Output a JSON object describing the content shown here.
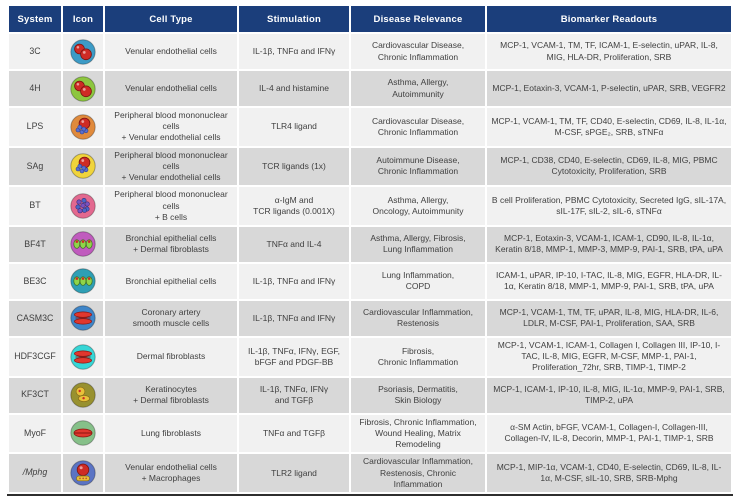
{
  "colors": {
    "header_bg": "#1B3E7B",
    "header_text": "#ffffff",
    "row_light": "#f1f1f1",
    "row_dark": "#d8d8d8",
    "body_text": "#3f3f3f",
    "outer_border": "#2e2e2e"
  },
  "chart_data": {
    "type": "table",
    "columns": [
      "System",
      "Icon",
      "Cell Type",
      "Stimulation",
      "Disease Relevance",
      "Biomarker Readouts"
    ],
    "rows": [
      {
        "system": "3C",
        "icon": {
          "name": "venular-endothelial-cells-icon",
          "pattern": "berries",
          "bg": "#3C9BC6",
          "cell": "#CE2B25"
        },
        "cell_type": "Venular endothelial cells",
        "stimulation": "IL-1β, TNFα and IFNγ",
        "disease_relevance": "Cardiovascular Disease,\nChronic Inflammation",
        "biomarker_readouts": "MCP-1, VCAM-1, TM, TF, ICAM-1, E-selectin, uPAR, IL-8, MIG, HLA-DR, Proliferation, SRB"
      },
      {
        "system": "4H",
        "icon": {
          "name": "venular-endothelial-cells-icon",
          "pattern": "berries",
          "bg": "#8DC63F",
          "cell": "#CE2B25"
        },
        "cell_type": "Venular endothelial cells",
        "stimulation": "IL-4 and histamine",
        "disease_relevance": "Asthma, Allergy,\nAutoimmunity",
        "biomarker_readouts": "MCP-1, Eotaxin-3, VCAM-1, P-selectin, uPAR, SRB, VEGFR2"
      },
      {
        "system": "LPS",
        "icon": {
          "name": "pbmc-endothelial-coculture-icon",
          "pattern": "berry-cluster",
          "bg": "#E08A3C",
          "cell": "#CE2B25",
          "accent": "#5A6FD0"
        },
        "cell_type": "Peripheral blood mononuclear cells\n+ Venular endothelial cells",
        "stimulation": "TLR4 ligand",
        "disease_relevance": "Cardiovascular Disease,\nChronic Inflammation",
        "biomarker_readouts": "MCP-1, VCAM-1, TM, TF, CD40, E-selectin, CD69, IL-8, IL-1α, M-CSF, sPGE₂, SRB, sTNFα"
      },
      {
        "system": "SAg",
        "icon": {
          "name": "pbmc-endothelial-coculture-icon",
          "pattern": "berry-cluster",
          "bg": "#F0D43C",
          "cell": "#CE2B25",
          "accent": "#5A6FD0"
        },
        "cell_type": "Peripheral blood mononuclear cells\n+ Venular endothelial cells",
        "stimulation": "TCR ligands (1x)",
        "disease_relevance": "Autoimmune Disease,\nChronic Inflammation",
        "biomarker_readouts": "MCP-1, CD38, CD40, E-selectin, CD69, IL-8, MIG, PBMC Cytotoxicity, Proliferation, SRB"
      },
      {
        "system": "BT",
        "icon": {
          "name": "pbmc-bcell-coculture-icon",
          "pattern": "cluster",
          "bg": "#E3698F",
          "cell": "#7A52C0",
          "accent": "#4A66C8"
        },
        "cell_type": "Peripheral blood mononuclear cells\n+ B cells",
        "stimulation": "α-IgM and\nTCR ligands  (0.001X)",
        "disease_relevance": "Asthma, Allergy,\nOncology, Autoimmunity",
        "biomarker_readouts": "B cell Proliferation, PBMC Cytotoxicity, Secreted IgG, sIL-17A, sIL-17F, sIL-2, sIL-6, sTNFα"
      },
      {
        "system": "BF4T",
        "icon": {
          "name": "bronchial-epithelial-fibroblast-icon",
          "pattern": "ovals",
          "bg": "#C05BBE",
          "cell": "#8FD44A",
          "accent": "#CE2B25"
        },
        "cell_type": "Bronchial epithelial cells\n+ Dermal fibroblasts",
        "stimulation": "TNFα and IL-4",
        "disease_relevance": "Asthma, Allergy, Fibrosis,\nLung Inflammation",
        "biomarker_readouts": "MCP-1, Eotaxin-3, VCAM-1, ICAM-1, CD90, IL-8, IL-1α, Keratin 8/18, MMP-1, MMP-3, MMP-9, PAI-1, SRB, tPA, uPA"
      },
      {
        "system": "BE3C",
        "icon": {
          "name": "bronchial-epithelial-cells-icon",
          "pattern": "ovals",
          "bg": "#2E9FB5",
          "cell": "#8FD44A",
          "accent": "#CE2B25"
        },
        "cell_type": "Bronchial epithelial cells",
        "stimulation": "IL-1β, TNFα and IFNγ",
        "disease_relevance": "Lung Inflammation,\nCOPD",
        "biomarker_readouts": "ICAM-1, uPAR, IP-10, I-TAC, IL-8, MIG, EGFR, HLA-DR, IL-1α, Keratin 8/18, MMP-1, MMP-9, PAI-1, SRB, tPA, uPA"
      },
      {
        "system": "CASM3C",
        "icon": {
          "name": "smooth-muscle-cells-icon",
          "pattern": "spindles",
          "bg": "#3E85C8",
          "cell": "#E0372E",
          "accent": "#8A1510"
        },
        "cell_type": "Coronary artery\nsmooth muscle cells",
        "stimulation": "IL-1β, TNFα and IFNγ",
        "disease_relevance": "Cardiovascular Inflammation,\nRestenosis",
        "biomarker_readouts": "MCP-1, VCAM-1, TM, TF, uPAR, IL-8, MIG, HLA-DR, IL-6, LDLR, M-CSF, PAI-1, Proliferation, SAA, SRB"
      },
      {
        "system": "HDF3CGF",
        "icon": {
          "name": "dermal-fibroblasts-icon",
          "pattern": "spindles",
          "bg": "#37D6D6",
          "cell": "#E0372E",
          "accent": "#8A1510"
        },
        "cell_type": "Dermal fibroblasts",
        "stimulation": "IL-1β, TNFα, IFNγ, EGF,\nbFGF and PDGF-BB",
        "disease_relevance": "Fibrosis,\nChronic Inflammation",
        "biomarker_readouts": "MCP-1, VCAM-1, ICAM-1, Collagen I, Collagen III, IP-10, I-TAC, IL-8, MIG, EGFR, M-CSF, MMP-1, PAI-1, Proliferation_72hr, SRB, TIMP-1, TIMP-2"
      },
      {
        "system": "KF3CT",
        "icon": {
          "name": "keratinocyte-fibroblast-icon",
          "pattern": "kerato",
          "bg": "#98912F",
          "cell": "#E8C13A",
          "accent": "#CE2B25"
        },
        "cell_type": "Keratinocytes\n+ Dermal fibroblasts",
        "stimulation": "IL-1β, TNFα, IFNγ\nand TGFβ",
        "disease_relevance": "Psoriasis, Dermatitis,\nSkin Biology",
        "biomarker_readouts": "MCP-1, ICAM-1, IP-10, IL-8, MIG, IL-1α, MMP-9, PAI-1, SRB, TIMP-2, uPA"
      },
      {
        "system": "MyoF",
        "icon": {
          "name": "lung-fibroblasts-icon",
          "pattern": "spindle",
          "bg": "#86C089",
          "cell": "#E0372E",
          "accent": "#8A1510"
        },
        "cell_type": "Lung fibroblasts",
        "stimulation": "TNFα and TGFβ",
        "disease_relevance": "Fibrosis, Chronic Inflammation,\nWound Healing, Matrix Remodeling",
        "biomarker_readouts": "α-SM Actin, bFGF, VCAM-1, Collagen-I, Collagen-III, Collagen-IV, IL-8, Decorin, MMP-1, PAI-1, TIMP-1, SRB"
      },
      {
        "system": "/Mphg",
        "italic": true,
        "icon": {
          "name": "endothelial-macrophage-coculture-icon",
          "pattern": "berry-band",
          "bg": "#5B74C4",
          "cell": "#CE2B25",
          "accent": "#E8C13A"
        },
        "cell_type": "Venular endothelial cells\n+ Macrophages",
        "stimulation": "TLR2 ligand",
        "disease_relevance": "Cardiovascular Inflammation,\nRestenosis, Chronic Inflammation",
        "biomarker_readouts": "MCP-1, MIP-1α, VCAM-1, CD40, E-selectin, CD69, IL-8, IL-1α, M-CSF, sIL-10, SRB, SRB-Mphg"
      }
    ]
  }
}
